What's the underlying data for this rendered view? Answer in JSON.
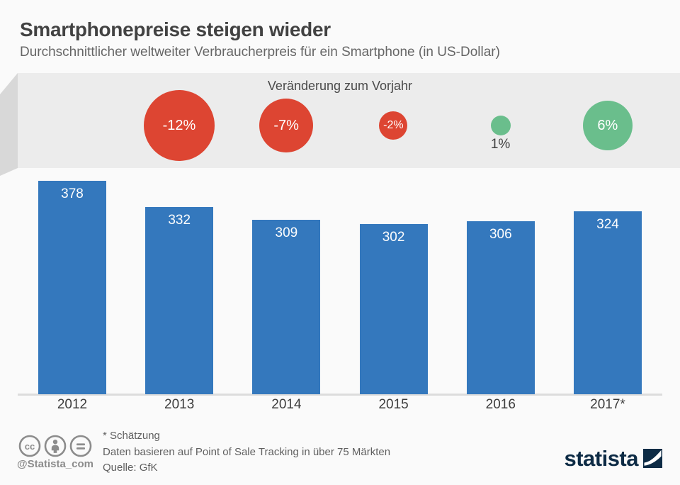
{
  "header": {
    "title": "Smartphonepreise steigen wieder",
    "subtitle": "Durchschnittlicher weltweiter Verbraucherpreis für ein Smartphone (in US-Dollar)"
  },
  "band": {
    "label": "Veränderung zum Vorjahr"
  },
  "chart_data": {
    "type": "bar",
    "title": "Durchschnittlicher weltweiter Verbraucherpreis für ein Smartphone (in US-Dollar)",
    "categories": [
      "2012",
      "2013",
      "2014",
      "2015",
      "2016",
      "2017*"
    ],
    "values": [
      378,
      332,
      309,
      302,
      306,
      324
    ],
    "ylim": [
      0,
      380
    ],
    "grid": false,
    "bar_color": "#3478bd",
    "value_label_color": "#fdfdfd",
    "change_bubbles": {
      "title": "Veränderung zum Vorjahr",
      "points": [
        {
          "category": "2013",
          "label": "-12%",
          "value": -12,
          "color": "#dd4532",
          "label_position": "inside"
        },
        {
          "category": "2014",
          "label": "-7%",
          "value": -7,
          "color": "#dd4532",
          "label_position": "inside"
        },
        {
          "category": "2015",
          "label": "-2%",
          "value": -2,
          "color": "#dd4532",
          "label_position": "inside"
        },
        {
          "category": "2016",
          "label": "1%",
          "value": 1,
          "color": "#6abe8c",
          "label_position": "below"
        },
        {
          "category": "2017",
          "label": "6%",
          "value": 6,
          "color": "#6abe8c",
          "label_position": "inside"
        }
      ]
    }
  },
  "footer": {
    "footnotes": [
      "* Schätzung",
      "Daten basieren auf Point of Sale Tracking in über 75 Märkten",
      "Quelle: GfK"
    ],
    "handle": "@Statista_com",
    "brand": "statista"
  },
  "colors": {
    "background": "#fafafa",
    "band": "#ececec",
    "band_fold": "#d8d8d8",
    "bar": "#3478bd",
    "negative": "#dd4532",
    "positive": "#6abe8c",
    "axis_line": "#dcdcdc",
    "brand_navy": "#0d2b45",
    "license_gray": "#8c8c8c"
  }
}
